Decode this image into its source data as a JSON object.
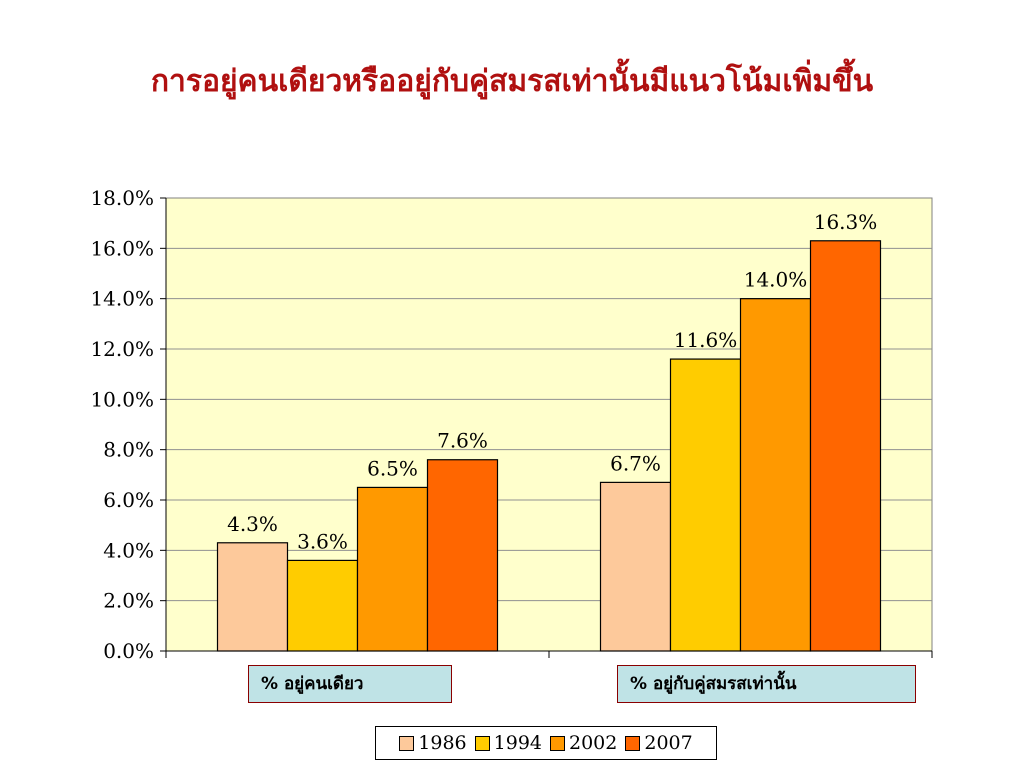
{
  "title": "การอยู่คนเดียวหรืออยู่กับคู่สมรสเท่านั้นมีแนวโน้มเพิ่มขึ้น",
  "legend": [
    {
      "label": "1986",
      "color": "#fdc99b"
    },
    {
      "label": "1994",
      "color": "#ffcc00"
    },
    {
      "label": "2002",
      "color": "#ff9900"
    },
    {
      "label": "2007",
      "color": "#ff6600"
    }
  ],
  "chart_data": {
    "type": "bar",
    "categories": [
      "% อยู่คนเดียว",
      "% อยู่กับคู่สมรสเท่านั้น"
    ],
    "series": [
      {
        "name": "1986",
        "values": [
          4.3,
          6.7
        ],
        "labels": [
          "4.3%",
          "6.7%"
        ],
        "color": "#fdc99b"
      },
      {
        "name": "1994",
        "values": [
          3.6,
          11.6
        ],
        "labels": [
          "3.6%",
          "11.6%"
        ],
        "color": "#ffcc00"
      },
      {
        "name": "2002",
        "values": [
          6.5,
          14.0
        ],
        "labels": [
          "6.5%",
          "14.0%"
        ],
        "color": "#ff9900"
      },
      {
        "name": "2007",
        "values": [
          7.6,
          16.3
        ],
        "labels": [
          "7.6%",
          "16.3%"
        ],
        "color": "#ff6600"
      }
    ],
    "ylim": [
      0,
      18
    ],
    "yticks": [
      "0.0%",
      "2.0%",
      "4.0%",
      "6.0%",
      "8.0%",
      "10.0%",
      "12.0%",
      "14.0%",
      "16.0%",
      "18.0%"
    ],
    "plot_background": "#ffffcc",
    "grid": true,
    "legend_position": "bottom"
  }
}
